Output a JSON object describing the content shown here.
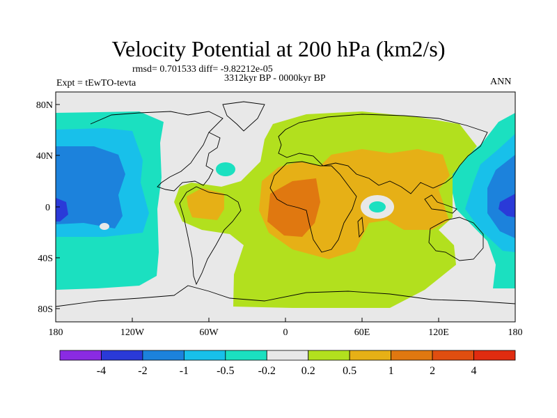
{
  "title": "Velocity Potential at 200 hPa (km2/s)",
  "stats": "rmsd= 0.701533 diff= -9.82212e-05",
  "experiment": "Expt = tEwTO-tevta",
  "period": "3312kyr BP - 0000kyr BP",
  "season": "ANN",
  "lat_labels": [
    "80N",
    "40N",
    "0",
    "40S",
    "80S"
  ],
  "lon_labels": [
    "180",
    "120W",
    "60W",
    "0",
    "60E",
    "120E",
    "180"
  ],
  "colorbar": {
    "colors": [
      "#8a2be2",
      "#2a3ad8",
      "#1c82dc",
      "#18c0ea",
      "#1be0c0",
      "#e8e8e8",
      "#b2e01e",
      "#e6b016",
      "#e07810",
      "#e04e10",
      "#e02c10"
    ],
    "labels": [
      "-4",
      "-2",
      "-1",
      "-0.5",
      "-0.2",
      "0.2",
      "0.5",
      "1",
      "2",
      "4"
    ]
  },
  "map_colors": {
    "neg_strong": "#2a3ad8",
    "neg_mid": "#1c82dc",
    "neg_light": "#18c0ea",
    "neg_weak": "#1be0c0",
    "neutral": "#e8e8e8",
    "pos_weak": "#b2e01e",
    "pos_mid": "#e6b016",
    "pos_strong": "#e07810"
  }
}
